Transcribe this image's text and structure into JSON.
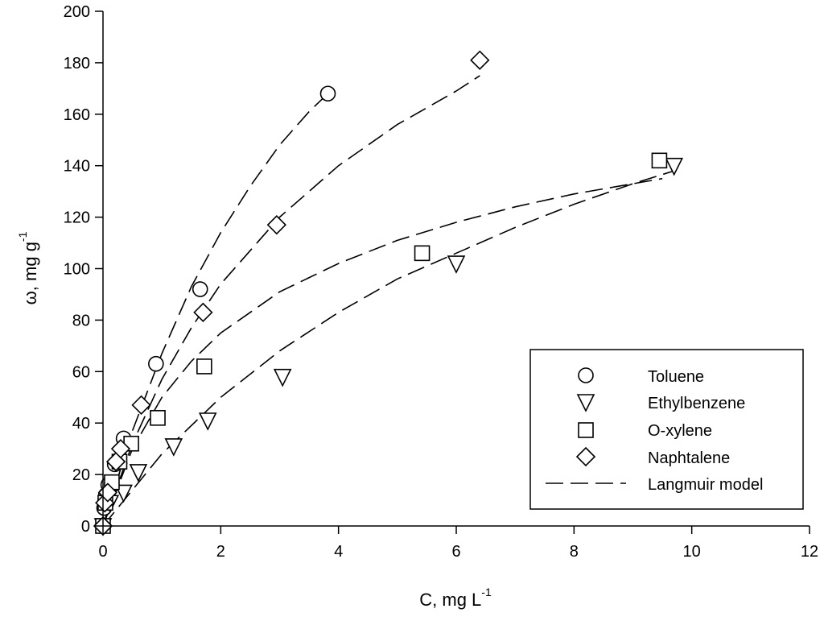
{
  "chart_data": {
    "type": "scatter",
    "title": "",
    "xlabel": "C, mg L",
    "xlabel_sup": "-1",
    "ylabel": "ω, mg g",
    "ylabel_sup": "-1",
    "xlim": [
      0,
      12
    ],
    "ylim": [
      0,
      200
    ],
    "xticks": [
      0,
      2,
      4,
      6,
      8,
      10,
      12
    ],
    "yticks": [
      0,
      20,
      40,
      60,
      80,
      100,
      120,
      140,
      160,
      180,
      200
    ],
    "grid": false,
    "legend_position": "bottom-right",
    "series": [
      {
        "name": "Toluene",
        "marker": "circle",
        "points": [
          [
            0,
            0
          ],
          [
            0.02,
            7
          ],
          [
            0.05,
            12
          ],
          [
            0.09,
            16
          ],
          [
            0.2,
            24
          ],
          [
            0.35,
            34
          ],
          [
            0.9,
            63
          ],
          [
            1.65,
            92
          ],
          [
            3.82,
            168
          ]
        ],
        "fit": [
          [
            0,
            0
          ],
          [
            0.5,
            37
          ],
          [
            1.0,
            67
          ],
          [
            1.5,
            93
          ],
          [
            2.0,
            114
          ],
          [
            2.5,
            132
          ],
          [
            3.0,
            148
          ],
          [
            3.5,
            161
          ],
          [
            3.82,
            168
          ]
        ]
      },
      {
        "name": "Ethylbenzene",
        "marker": "triangle-down",
        "points": [
          [
            0,
            0
          ],
          [
            0.12,
            9
          ],
          [
            0.35,
            13
          ],
          [
            0.6,
            21
          ],
          [
            1.2,
            31
          ],
          [
            1.78,
            41
          ],
          [
            3.05,
            58
          ],
          [
            6.0,
            102
          ],
          [
            9.7,
            140
          ]
        ],
        "fit": [
          [
            0,
            0
          ],
          [
            1,
            28
          ],
          [
            2,
            50
          ],
          [
            3,
            68
          ],
          [
            4,
            83
          ],
          [
            5,
            96
          ],
          [
            6,
            106
          ],
          [
            7,
            116
          ],
          [
            8,
            125
          ],
          [
            9,
            133
          ],
          [
            9.7,
            138
          ]
        ]
      },
      {
        "name": "O-xylene",
        "marker": "square",
        "points": [
          [
            0,
            0
          ],
          [
            0.04,
            9
          ],
          [
            0.15,
            17
          ],
          [
            0.28,
            25
          ],
          [
            0.48,
            32
          ],
          [
            0.93,
            42
          ],
          [
            1.72,
            62
          ],
          [
            5.42,
            106
          ],
          [
            9.45,
            142
          ]
        ],
        "fit": [
          [
            0,
            0
          ],
          [
            0.5,
            30
          ],
          [
            1,
            50
          ],
          [
            1.5,
            64
          ],
          [
            2,
            75
          ],
          [
            3,
            91
          ],
          [
            4,
            102
          ],
          [
            5,
            111
          ],
          [
            6,
            118
          ],
          [
            7,
            124
          ],
          [
            8,
            129
          ],
          [
            9,
            133
          ],
          [
            9.5,
            135
          ]
        ]
      },
      {
        "name": "Naphtalene",
        "marker": "diamond",
        "points": [
          [
            0,
            0
          ],
          [
            0.03,
            9
          ],
          [
            0.08,
            13
          ],
          [
            0.22,
            25
          ],
          [
            0.3,
            30
          ],
          [
            0.65,
            47
          ],
          [
            1.7,
            83
          ],
          [
            2.95,
            117
          ],
          [
            6.4,
            181
          ]
        ],
        "fit": [
          [
            0,
            0
          ],
          [
            0.5,
            32
          ],
          [
            1,
            57
          ],
          [
            1.5,
            77
          ],
          [
            2,
            94
          ],
          [
            3,
            120
          ],
          [
            4,
            140
          ],
          [
            5,
            156
          ],
          [
            6,
            169
          ],
          [
            6.4,
            175
          ]
        ]
      }
    ],
    "legend_entries": [
      "Toluene",
      "Ethylbenzene",
      "O-xylene",
      "Naphtalene",
      "Langmuir model"
    ],
    "fit_label": "Langmuir model"
  }
}
